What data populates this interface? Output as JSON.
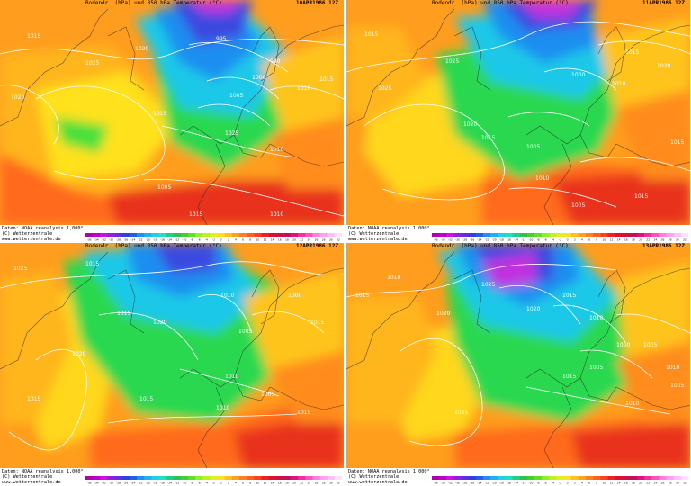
{
  "panels": [
    {
      "title": "Bodendr. (hPa) und 850 hPa Temperatur (°C)",
      "date": "10APR1986 12Z",
      "isobars": [
        "1015",
        "1020",
        "1025",
        "1015",
        "1020",
        "1025",
        "1010",
        "1005",
        "1000",
        "995",
        "990",
        "1010",
        "1015",
        "1005",
        "1010",
        "1015"
      ]
    },
    {
      "title": "Bodendr. (hPa) und 850 hPa Temperatur (°C)",
      "date": "11APR1986 12Z",
      "isobars": [
        "1015",
        "1025",
        "1025",
        "1020",
        "1015",
        "1005",
        "1000",
        "1010",
        "1015",
        "1020",
        "1015",
        "1015",
        "1010",
        "1005",
        "1005"
      ]
    },
    {
      "title": "Bodendr. (hPa) und 850 hPa Temperatur (°C)",
      "date": "12APR1986 12Z",
      "isobars": [
        "1025",
        "1015",
        "1020",
        "1015",
        "1015",
        "1020",
        "1010",
        "1005",
        "1000",
        "1015",
        "1010",
        "1005",
        "1015",
        "1010",
        "1015"
      ]
    },
    {
      "title": "Bodendr. (hPa) und 850 hPa Temperatur (°C)",
      "date": "13APR1986 12Z",
      "isobars": [
        "1015",
        "1010",
        "1020",
        "1025",
        "1025",
        "1020",
        "1015",
        "1010",
        "1005",
        "1000",
        "1005",
        "1010",
        "1015",
        "1010",
        "1005"
      ]
    }
  ],
  "credits": {
    "line1": "Daten: NOAA reanalysis 1,000°",
    "line2": "(C) Wetterzentrale",
    "line3": "www.wetterzentrale.de"
  },
  "scale": {
    "ticks": [
      "-36",
      "-34",
      "-32",
      "-30",
      "-28",
      "-26",
      "-24",
      "-22",
      "-20",
      "-18",
      "-16",
      "-14",
      "-12",
      "-10",
      "-8",
      "-6",
      "-4",
      "-2",
      "0",
      "2",
      "4",
      "6",
      "8",
      "10",
      "12",
      "14",
      "16",
      "18",
      "20",
      "22",
      "24",
      "26",
      "28",
      "30",
      "32"
    ],
    "colors": [
      "#b000b0",
      "#c000d0",
      "#d010e0",
      "#9020e0",
      "#6030e0",
      "#3040e0",
      "#2060e8",
      "#2090f0",
      "#20b0f0",
      "#20d0e8",
      "#20e0c0",
      "#20d080",
      "#30c050",
      "#40d030",
      "#60e020",
      "#90f020",
      "#c0f020",
      "#e0f020",
      "#ffe020",
      "#ffc020",
      "#ffa020",
      "#ff8020",
      "#ff6020",
      "#ff4020",
      "#f02020",
      "#e01030",
      "#d01040",
      "#c01060",
      "#e01080",
      "#f030a0",
      "#ff50c0",
      "#ff80e0",
      "#ffa0f0",
      "#ffc0f8",
      "#ffe0ff"
    ]
  }
}
